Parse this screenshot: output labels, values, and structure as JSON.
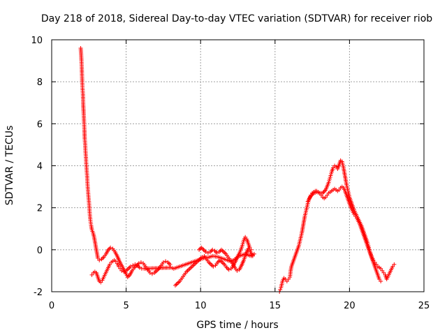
{
  "chart_data": {
    "type": "scatter",
    "title": "Day 218 of 2018, Sidereal Day-to-day VTEC variation (SDTVAR) for receiver riob",
    "xlabel": "GPS time / hours",
    "ylabel": "SDTVAR / TECUs",
    "xlim": [
      0,
      25
    ],
    "ylim": [
      -2,
      10
    ],
    "xticks": [
      0,
      5,
      10,
      15,
      20,
      25
    ],
    "yticks": [
      -2,
      0,
      2,
      4,
      6,
      8,
      10
    ],
    "grid": true,
    "marker": "+",
    "color": "#ff0000",
    "series": [
      {
        "name": "SDTVAR",
        "points": [
          [
            1.95,
            9.6
          ],
          [
            1.97,
            9.4
          ],
          [
            2.0,
            9.0
          ],
          [
            2.02,
            8.7
          ],
          [
            2.05,
            8.0
          ],
          [
            2.07,
            7.7
          ],
          [
            2.1,
            7.4
          ],
          [
            2.12,
            6.9
          ],
          [
            2.15,
            6.5
          ],
          [
            2.18,
            6.0
          ],
          [
            2.2,
            5.7
          ],
          [
            2.22,
            5.3
          ],
          [
            2.25,
            5.0
          ],
          [
            2.27,
            4.7
          ],
          [
            2.3,
            4.4
          ],
          [
            2.32,
            4.1
          ],
          [
            2.35,
            3.8
          ],
          [
            2.38,
            3.5
          ],
          [
            2.4,
            3.2
          ],
          [
            2.43,
            2.9
          ],
          [
            2.46,
            2.6
          ],
          [
            2.5,
            2.3
          ],
          [
            2.53,
            2.0
          ],
          [
            2.56,
            1.7
          ],
          [
            2.6,
            1.4
          ],
          [
            2.65,
            1.15
          ],
          [
            2.7,
            0.95
          ],
          [
            2.78,
            0.8
          ],
          [
            2.85,
            0.6
          ],
          [
            2.9,
            0.4
          ],
          [
            2.95,
            0.2
          ],
          [
            3.0,
            0.0
          ],
          [
            3.05,
            -0.2
          ],
          [
            3.1,
            -0.4
          ],
          [
            3.2,
            -0.5
          ],
          [
            3.35,
            -0.45
          ],
          [
            3.5,
            -0.35
          ],
          [
            3.65,
            -0.2
          ],
          [
            3.8,
            0.0
          ],
          [
            3.95,
            0.1
          ],
          [
            4.1,
            0.05
          ],
          [
            4.25,
            -0.1
          ],
          [
            4.4,
            -0.3
          ],
          [
            4.55,
            -0.55
          ],
          [
            4.7,
            -0.75
          ],
          [
            4.85,
            -0.95
          ],
          [
            5.0,
            -1.15
          ],
          [
            5.1,
            -1.3
          ],
          [
            5.25,
            -1.2
          ],
          [
            5.4,
            -1.0
          ],
          [
            5.55,
            -0.85
          ],
          [
            5.7,
            -0.75
          ],
          [
            5.85,
            -0.65
          ],
          [
            6.0,
            -0.6
          ],
          [
            6.15,
            -0.65
          ],
          [
            6.3,
            -0.8
          ],
          [
            6.45,
            -0.95
          ],
          [
            6.6,
            -1.1
          ],
          [
            6.75,
            -1.15
          ],
          [
            6.9,
            -1.1
          ],
          [
            7.05,
            -1.0
          ],
          [
            7.2,
            -0.9
          ],
          [
            7.35,
            -0.75
          ],
          [
            7.5,
            -0.6
          ],
          [
            7.65,
            -0.55
          ],
          [
            7.8,
            -0.6
          ],
          [
            7.95,
            -0.7
          ],
          [
            2.7,
            -1.2
          ],
          [
            2.8,
            -1.1
          ],
          [
            2.9,
            -1.05
          ],
          [
            3.0,
            -1.1
          ],
          [
            3.1,
            -1.3
          ],
          [
            3.2,
            -1.5
          ],
          [
            3.3,
            -1.55
          ],
          [
            3.4,
            -1.45
          ],
          [
            3.5,
            -1.3
          ],
          [
            3.6,
            -1.15
          ],
          [
            3.7,
            -1.0
          ],
          [
            3.8,
            -0.85
          ],
          [
            3.9,
            -0.7
          ],
          [
            4.0,
            -0.6
          ],
          [
            4.1,
            -0.55
          ],
          [
            4.2,
            -0.5
          ],
          [
            4.3,
            -0.55
          ],
          [
            4.4,
            -0.65
          ],
          [
            4.5,
            -0.8
          ],
          [
            4.6,
            -0.9
          ],
          [
            4.7,
            -1.0
          ],
          [
            4.85,
            -1.05
          ],
          [
            5.0,
            -1.0
          ],
          [
            5.15,
            -0.9
          ],
          [
            5.3,
            -0.8
          ],
          [
            5.45,
            -0.75
          ],
          [
            5.6,
            -0.7
          ],
          [
            5.75,
            -0.75
          ],
          [
            5.9,
            -0.85
          ],
          [
            6.05,
            -0.9
          ],
          [
            6.2,
            -0.9
          ],
          [
            8.0,
            -0.85
          ],
          [
            8.2,
            -0.9
          ],
          [
            8.4,
            -0.85
          ],
          [
            8.6,
            -0.8
          ],
          [
            8.8,
            -0.75
          ],
          [
            9.0,
            -0.7
          ],
          [
            9.2,
            -0.65
          ],
          [
            9.4,
            -0.6
          ],
          [
            9.6,
            -0.55
          ],
          [
            9.8,
            -0.5
          ],
          [
            10.0,
            -0.45
          ],
          [
            10.2,
            -0.4
          ],
          [
            10.4,
            -0.38
          ],
          [
            10.6,
            -0.35
          ],
          [
            10.8,
            -0.3
          ],
          [
            11.0,
            -0.32
          ],
          [
            11.2,
            -0.35
          ],
          [
            11.4,
            -0.4
          ],
          [
            11.6,
            -0.45
          ],
          [
            11.8,
            -0.5
          ],
          [
            12.0,
            -0.55
          ],
          [
            12.2,
            -0.5
          ],
          [
            12.4,
            -0.4
          ],
          [
            12.6,
            -0.3
          ],
          [
            12.8,
            -0.25
          ],
          [
            13.0,
            -0.2
          ],
          [
            13.2,
            -0.25
          ],
          [
            13.4,
            -0.3
          ],
          [
            13.6,
            -0.2
          ],
          [
            8.3,
            -1.7
          ],
          [
            8.45,
            -1.6
          ],
          [
            8.6,
            -1.5
          ],
          [
            8.75,
            -1.35
          ],
          [
            8.9,
            -1.2
          ],
          [
            9.05,
            -1.05
          ],
          [
            9.2,
            -0.95
          ],
          [
            9.35,
            -0.85
          ],
          [
            9.5,
            -0.75
          ],
          [
            9.65,
            -0.65
          ],
          [
            9.8,
            -0.55
          ],
          [
            9.95,
            -0.45
          ],
          [
            10.1,
            -0.35
          ],
          [
            10.25,
            -0.3
          ],
          [
            10.4,
            -0.45
          ],
          [
            10.55,
            -0.6
          ],
          [
            10.7,
            -0.7
          ],
          [
            10.85,
            -0.8
          ],
          [
            11.0,
            -0.75
          ],
          [
            11.15,
            -0.6
          ],
          [
            11.3,
            -0.5
          ],
          [
            11.45,
            -0.6
          ],
          [
            11.6,
            -0.7
          ],
          [
            11.75,
            -0.85
          ],
          [
            11.9,
            -0.95
          ],
          [
            12.05,
            -0.9
          ],
          [
            12.2,
            -0.75
          ],
          [
            12.35,
            -0.55
          ],
          [
            12.5,
            -0.3
          ],
          [
            12.65,
            -0.1
          ],
          [
            12.8,
            0.2
          ],
          [
            12.9,
            0.45
          ],
          [
            13.0,
            0.6
          ],
          [
            13.1,
            0.5
          ],
          [
            13.2,
            0.3
          ],
          [
            13.3,
            0.1
          ],
          [
            13.4,
            0.0
          ],
          [
            9.9,
            0.0
          ],
          [
            10.05,
            0.1
          ],
          [
            10.2,
            0.0
          ],
          [
            10.35,
            -0.1
          ],
          [
            10.5,
            -0.15
          ],
          [
            10.65,
            -0.1
          ],
          [
            10.8,
            0.0
          ],
          [
            10.95,
            -0.05
          ],
          [
            11.1,
            -0.15
          ],
          [
            11.25,
            -0.1
          ],
          [
            11.4,
            0.0
          ],
          [
            11.55,
            -0.1
          ],
          [
            11.7,
            -0.2
          ],
          [
            11.85,
            -0.35
          ],
          [
            12.0,
            -0.5
          ],
          [
            12.15,
            -0.65
          ],
          [
            12.3,
            -0.85
          ],
          [
            12.45,
            -1.0
          ],
          [
            12.6,
            -0.95
          ],
          [
            12.75,
            -0.75
          ],
          [
            12.9,
            -0.5
          ],
          [
            13.05,
            -0.2
          ],
          [
            13.2,
            0.05
          ],
          [
            13.35,
            -0.1
          ],
          [
            13.5,
            -0.3
          ],
          [
            15.3,
            -2.0
          ],
          [
            15.35,
            -1.9
          ],
          [
            15.4,
            -1.8
          ],
          [
            15.45,
            -1.65
          ],
          [
            15.5,
            -1.5
          ],
          [
            15.6,
            -1.35
          ],
          [
            15.7,
            -1.4
          ],
          [
            15.8,
            -1.5
          ],
          [
            15.9,
            -1.4
          ],
          [
            16.0,
            -1.3
          ],
          [
            16.05,
            -1.0
          ],
          [
            16.1,
            -0.8
          ],
          [
            16.2,
            -0.6
          ],
          [
            16.3,
            -0.4
          ],
          [
            16.4,
            -0.2
          ],
          [
            16.5,
            0.0
          ],
          [
            16.6,
            0.2
          ],
          [
            16.7,
            0.5
          ],
          [
            16.8,
            0.8
          ],
          [
            16.9,
            1.2
          ],
          [
            17.0,
            1.6
          ],
          [
            17.1,
            1.9
          ],
          [
            17.2,
            2.2
          ],
          [
            17.3,
            2.45
          ],
          [
            17.4,
            2.6
          ],
          [
            17.5,
            2.7
          ],
          [
            17.6,
            2.75
          ],
          [
            17.7,
            2.8
          ],
          [
            17.8,
            2.8
          ],
          [
            17.9,
            2.75
          ],
          [
            18.0,
            2.7
          ],
          [
            18.1,
            2.6
          ],
          [
            18.2,
            2.5
          ],
          [
            18.3,
            2.45
          ],
          [
            18.4,
            2.5
          ],
          [
            18.5,
            2.6
          ],
          [
            18.6,
            2.7
          ],
          [
            18.7,
            2.75
          ],
          [
            18.8,
            2.8
          ],
          [
            18.9,
            2.85
          ],
          [
            19.0,
            2.9
          ],
          [
            19.1,
            2.85
          ],
          [
            19.2,
            2.8
          ],
          [
            19.3,
            2.85
          ],
          [
            19.4,
            2.95
          ],
          [
            19.5,
            3.0
          ],
          [
            19.6,
            2.95
          ],
          [
            19.7,
            2.8
          ],
          [
            19.8,
            2.6
          ],
          [
            19.9,
            2.4
          ],
          [
            20.0,
            2.2
          ],
          [
            20.1,
            2.0
          ],
          [
            20.2,
            1.85
          ],
          [
            20.3,
            1.7
          ],
          [
            20.4,
            1.6
          ],
          [
            20.5,
            1.5
          ],
          [
            20.6,
            1.35
          ],
          [
            20.7,
            1.2
          ],
          [
            20.8,
            1.0
          ],
          [
            20.9,
            0.8
          ],
          [
            21.0,
            0.6
          ],
          [
            21.1,
            0.4
          ],
          [
            21.2,
            0.2
          ],
          [
            21.3,
            0.0
          ],
          [
            21.4,
            -0.2
          ],
          [
            21.5,
            -0.4
          ],
          [
            21.6,
            -0.6
          ],
          [
            21.7,
            -0.8
          ],
          [
            21.8,
            -1.0
          ],
          [
            21.9,
            -1.2
          ],
          [
            22.0,
            -1.4
          ],
          [
            22.1,
            -1.5
          ],
          [
            17.2,
            2.3
          ],
          [
            17.4,
            2.55
          ],
          [
            17.6,
            2.7
          ],
          [
            17.8,
            2.75
          ],
          [
            18.0,
            2.7
          ],
          [
            18.2,
            2.7
          ],
          [
            18.4,
            2.85
          ],
          [
            18.6,
            3.2
          ],
          [
            18.7,
            3.45
          ],
          [
            18.8,
            3.7
          ],
          [
            18.9,
            3.9
          ],
          [
            19.0,
            4.0
          ],
          [
            19.1,
            3.95
          ],
          [
            19.2,
            3.85
          ],
          [
            19.3,
            4.05
          ],
          [
            19.4,
            4.25
          ],
          [
            19.5,
            4.2
          ],
          [
            19.6,
            3.9
          ],
          [
            19.7,
            3.5
          ],
          [
            19.8,
            3.1
          ],
          [
            19.9,
            2.8
          ],
          [
            20.0,
            2.5
          ],
          [
            20.1,
            2.3
          ],
          [
            20.2,
            2.1
          ],
          [
            20.3,
            1.9
          ],
          [
            20.4,
            1.75
          ],
          [
            20.5,
            1.6
          ],
          [
            20.6,
            1.45
          ],
          [
            20.7,
            1.3
          ],
          [
            20.8,
            1.15
          ],
          [
            20.9,
            0.95
          ],
          [
            21.0,
            0.75
          ],
          [
            21.1,
            0.55
          ],
          [
            21.2,
            0.35
          ],
          [
            21.3,
            0.1
          ],
          [
            21.4,
            -0.15
          ],
          [
            21.5,
            -0.35
          ],
          [
            21.6,
            -0.5
          ],
          [
            21.7,
            -0.6
          ],
          [
            21.8,
            -0.7
          ],
          [
            21.9,
            -0.8
          ],
          [
            22.0,
            -0.85
          ],
          [
            22.1,
            -0.9
          ],
          [
            22.2,
            -1.0
          ],
          [
            22.3,
            -1.1
          ],
          [
            22.4,
            -1.2
          ],
          [
            22.5,
            -1.4
          ],
          [
            22.6,
            -1.25
          ],
          [
            22.7,
            -1.1
          ],
          [
            22.8,
            -0.95
          ],
          [
            22.9,
            -0.8
          ],
          [
            23.0,
            -0.7
          ]
        ]
      }
    ]
  }
}
